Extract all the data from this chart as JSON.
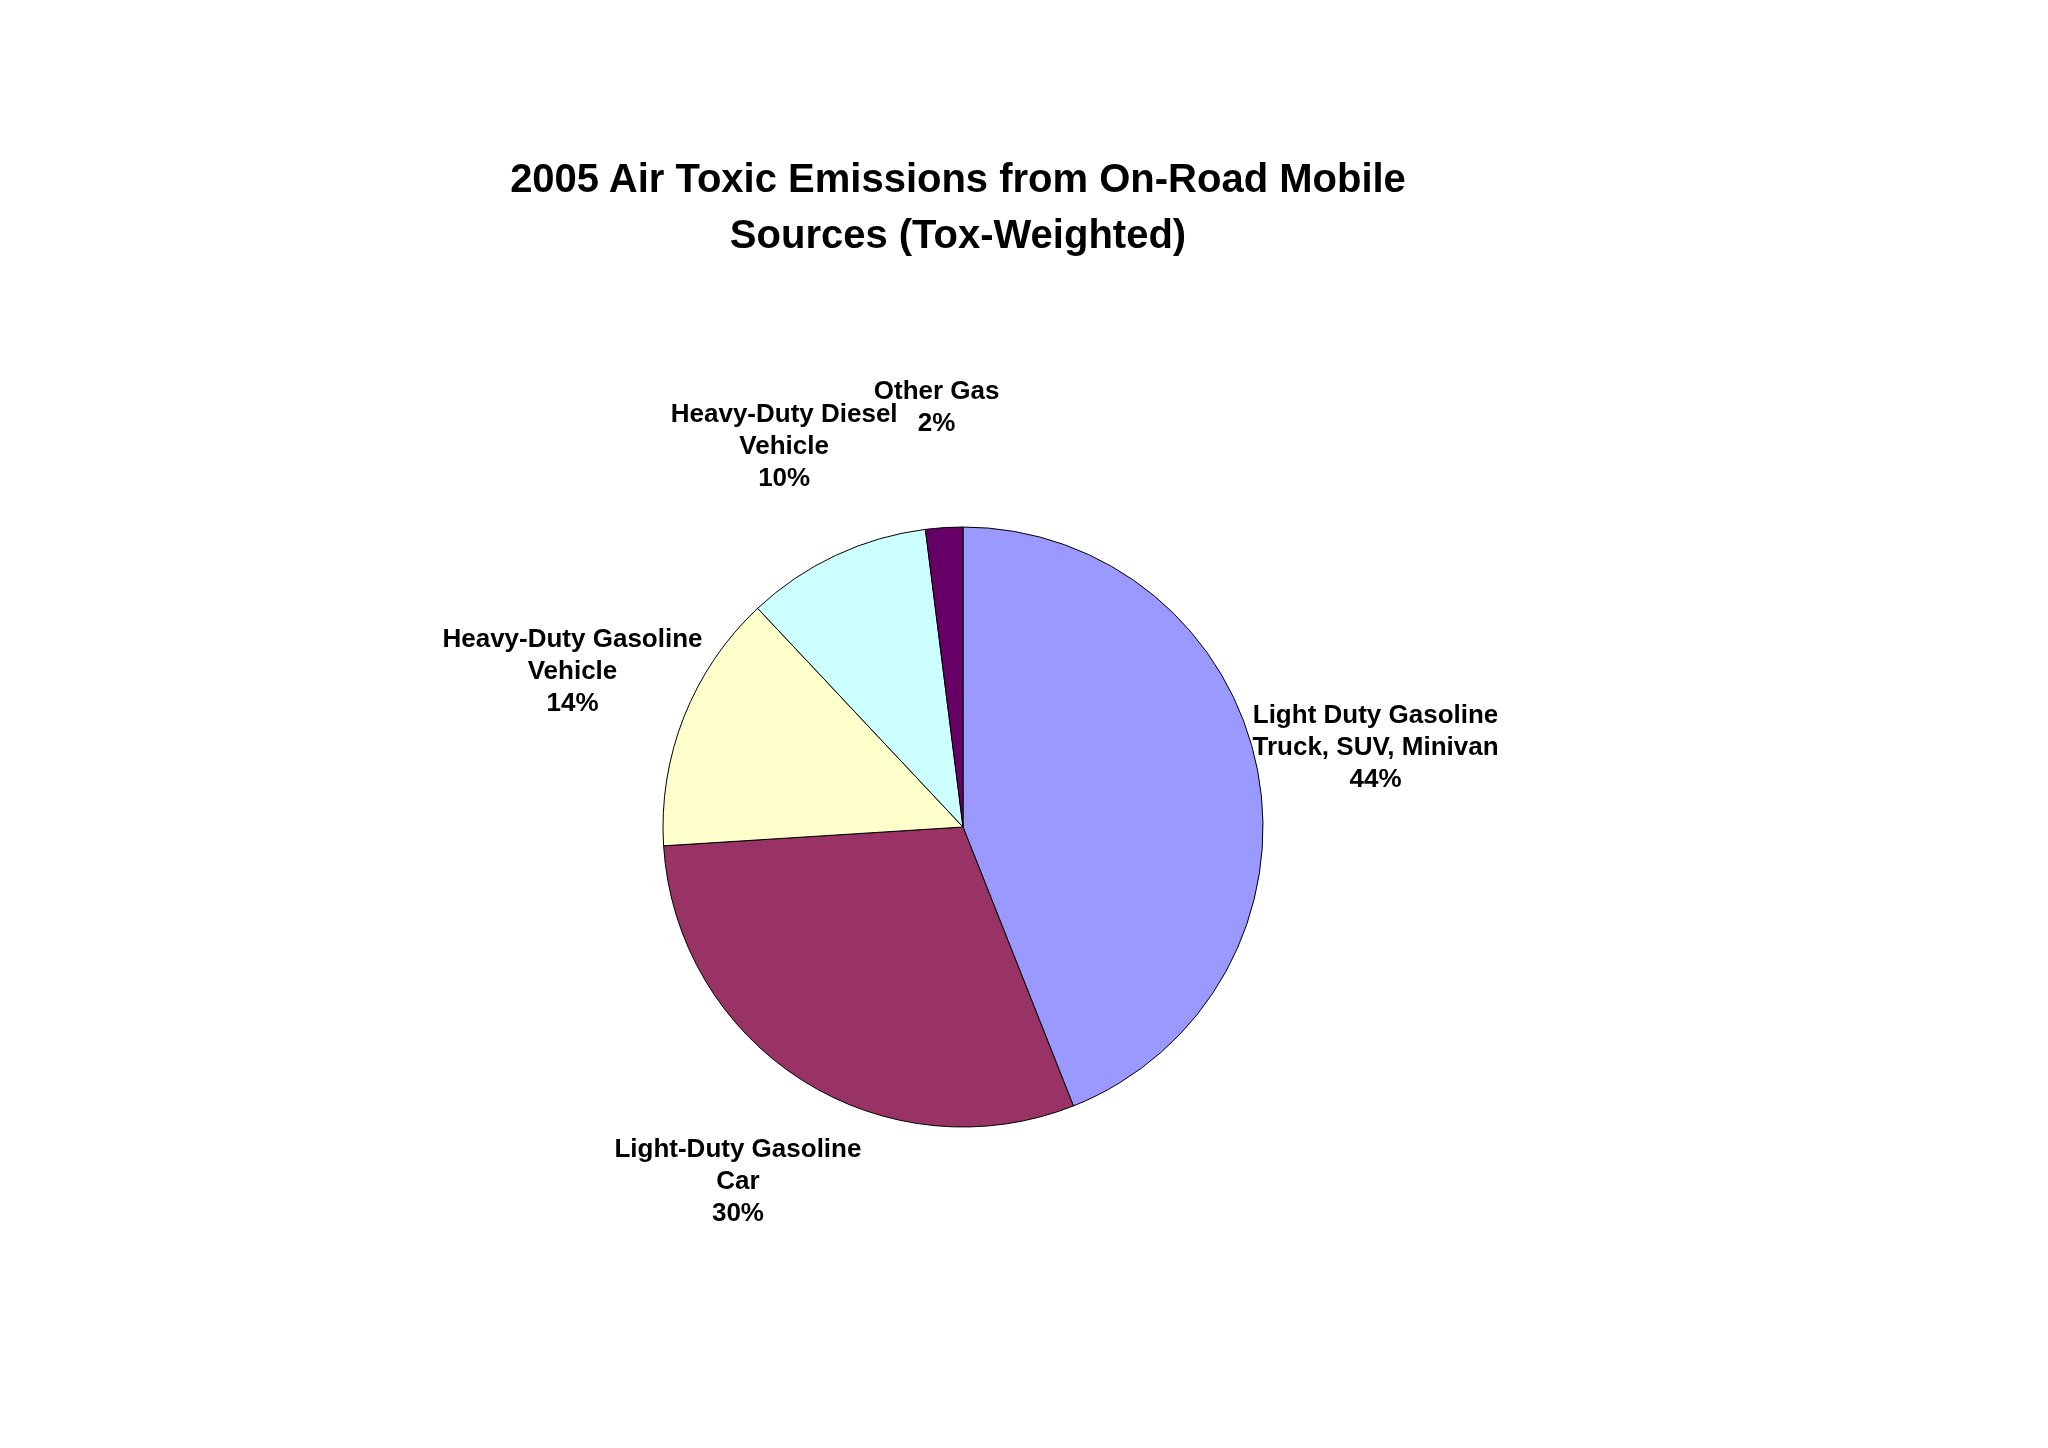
{
  "chart_data": {
    "type": "pie",
    "title": "2005 Air Toxic Emissions from On-Road Mobile Sources (Tox-Weighted)",
    "categories": [
      "Light Duty Gasoline Truck, SUV, Minivan",
      "Light-Duty Gasoline Car",
      "Heavy-Duty Gasoline Vehicle",
      "Heavy-Duty Diesel Vehicle",
      "Other Gas"
    ],
    "values": [
      44,
      30,
      14,
      10,
      2
    ],
    "value_labels": [
      "44%",
      "30%",
      "14%",
      "10%",
      "2%"
    ],
    "colors": [
      "#9999ff",
      "#993366",
      "#ffffcc",
      "#ccffff",
      "#660066"
    ]
  }
}
